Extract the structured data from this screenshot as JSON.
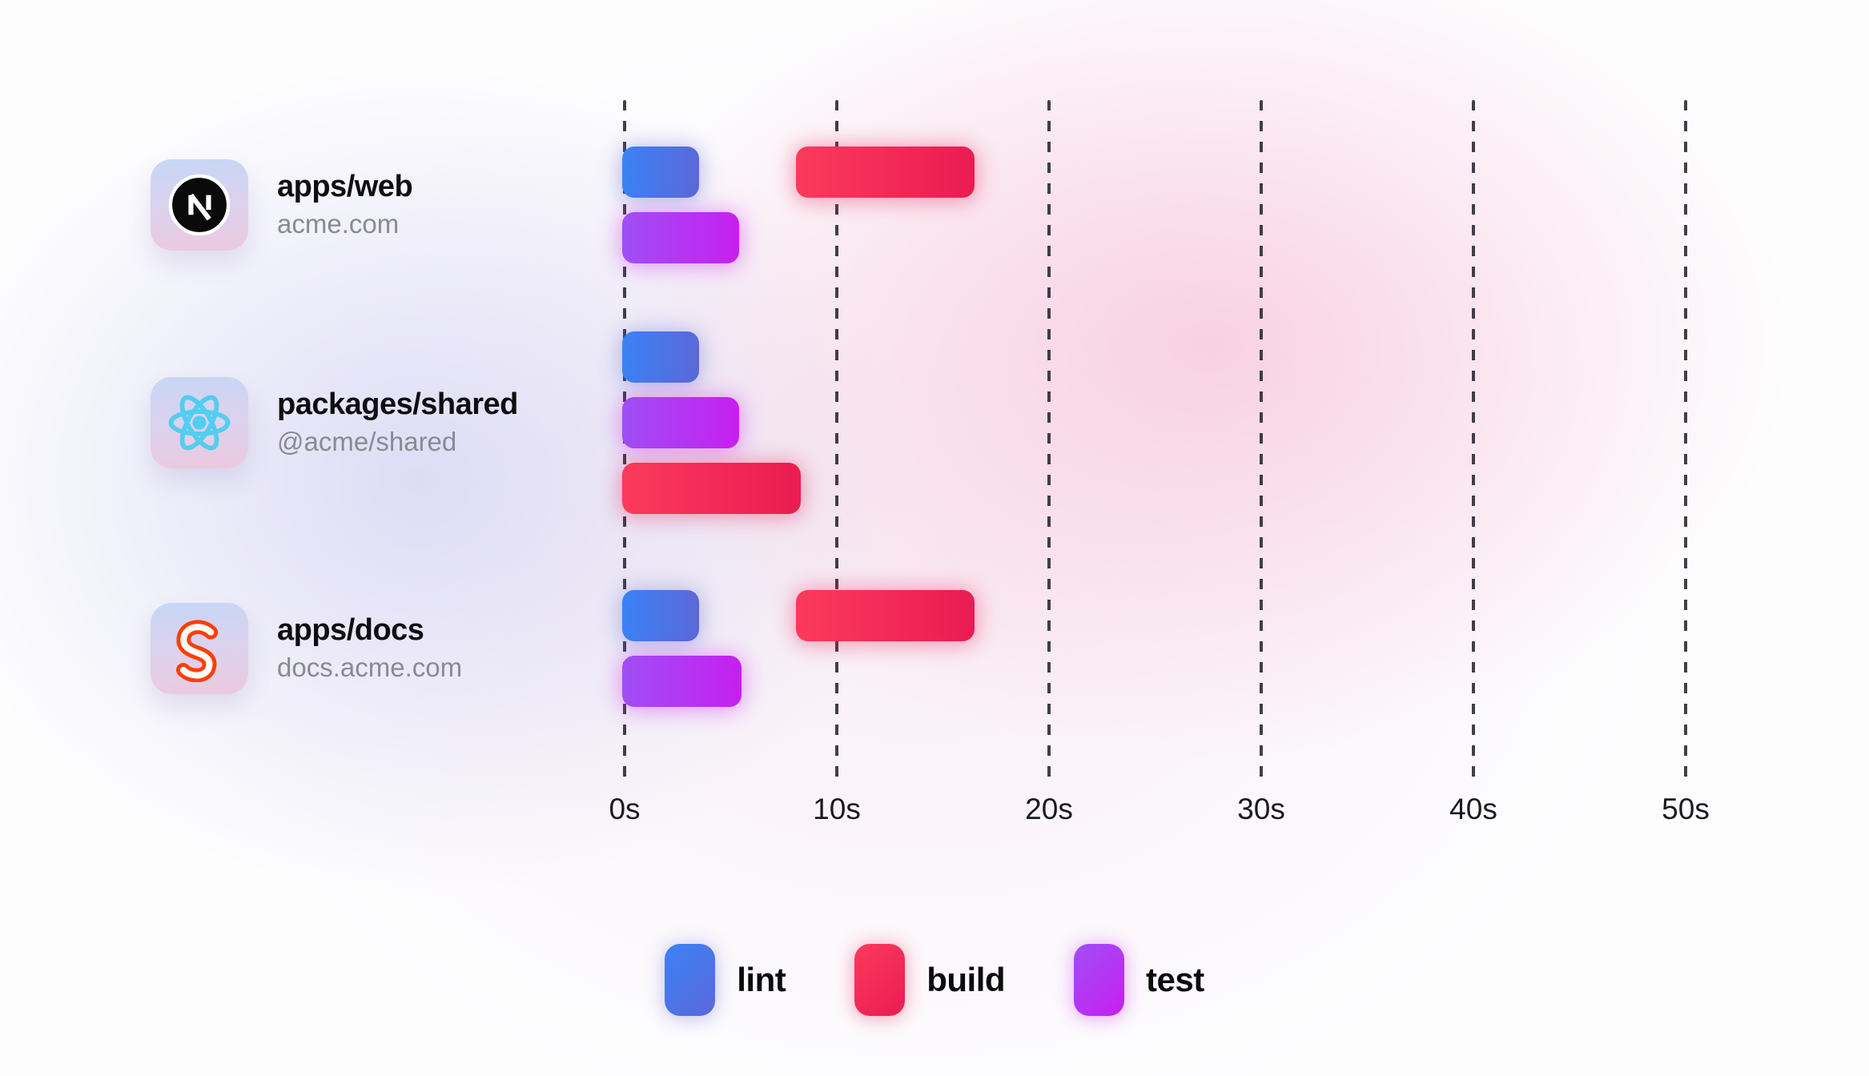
{
  "chart_data": {
    "type": "gantt",
    "title": "",
    "x_axis": {
      "unit": "seconds",
      "tick_labels": [
        "0s",
        "10s",
        "20s",
        "30s",
        "40s",
        "50s"
      ],
      "tick_values": [
        0,
        10,
        20,
        30,
        40,
        50
      ],
      "range": [
        0,
        50
      ],
      "gridlines": "dashed-vertical"
    },
    "rows": [
      {
        "package": "apps/web",
        "subtitle": "acme.com",
        "icon": "nextjs-logo",
        "tasks": [
          {
            "task": "lint",
            "start": 0,
            "end": 3.5,
            "lane": 0
          },
          {
            "task": "build",
            "start": 8.2,
            "end": 16.5,
            "lane": 0
          },
          {
            "task": "test",
            "start": 0,
            "end": 5.4,
            "lane": 1
          }
        ]
      },
      {
        "package": "packages/shared",
        "subtitle": "@acme/shared",
        "icon": "react-logo",
        "tasks": [
          {
            "task": "lint",
            "start": 0,
            "end": 3.5,
            "lane": 0
          },
          {
            "task": "test",
            "start": 0,
            "end": 5.4,
            "lane": 1
          },
          {
            "task": "build",
            "start": 0,
            "end": 8.3,
            "lane": 2
          }
        ]
      },
      {
        "package": "apps/docs",
        "subtitle": "docs.acme.com",
        "icon": "svelte-logo",
        "tasks": [
          {
            "task": "lint",
            "start": 0,
            "end": 3.5,
            "lane": 0
          },
          {
            "task": "build",
            "start": 8.2,
            "end": 16.5,
            "lane": 0
          },
          {
            "task": "test",
            "start": 0,
            "end": 5.5,
            "lane": 1
          }
        ]
      }
    ],
    "legend": [
      {
        "label": "lint",
        "color_start": "#3b82f6",
        "color_end": "#5b68d8"
      },
      {
        "label": "build",
        "color_start": "#fb3a5d",
        "color_end": "#ea1c52"
      },
      {
        "label": "test",
        "color_start": "#a04ef5",
        "color_end": "#c71ff0"
      }
    ],
    "legend_position": "bottom-center",
    "colors": {
      "tile_gradient_top": "#c7d6f6",
      "tile_gradient_bottom": "#ecc9df",
      "gridline": "#26262e",
      "title_text": "#0e0e12",
      "subtitle_text": "#8a8a92",
      "react_icon": "#53cdf0",
      "nextjs_icon": "#0a0a0a",
      "svelte_icon": "#ff3e00"
    }
  }
}
